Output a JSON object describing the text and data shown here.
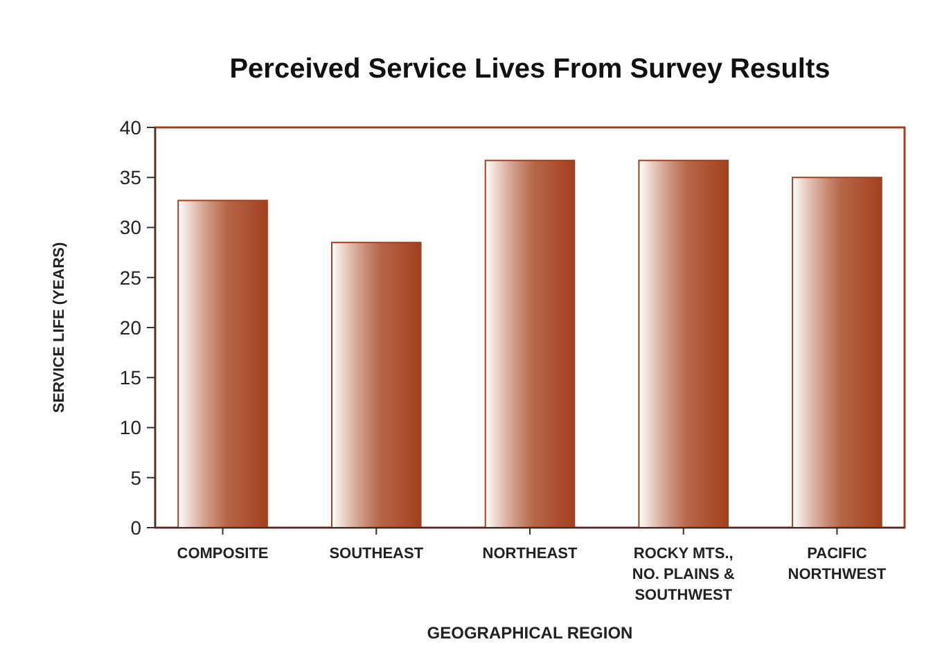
{
  "chart_data": {
    "type": "bar",
    "title": "Perceived Service Lives From Survey Results",
    "xlabel": "GEOGRAPHICAL REGION",
    "ylabel": "SERVICE LIFE (YEARS)",
    "categories": [
      "COMPOSITE",
      "SOUTHEAST",
      "NORTHEAST",
      "ROCKY MTS., NO. PLAINS & SOUTHWEST",
      "PACIFIC NORTHWEST"
    ],
    "values": [
      32.7,
      28.5,
      36.7,
      36.7,
      35.0
    ],
    "color": "#a3401c",
    "ylim": [
      0,
      40
    ],
    "yticks": [
      0,
      5,
      10,
      15,
      20,
      25,
      30,
      35,
      40
    ],
    "grid": false
  }
}
